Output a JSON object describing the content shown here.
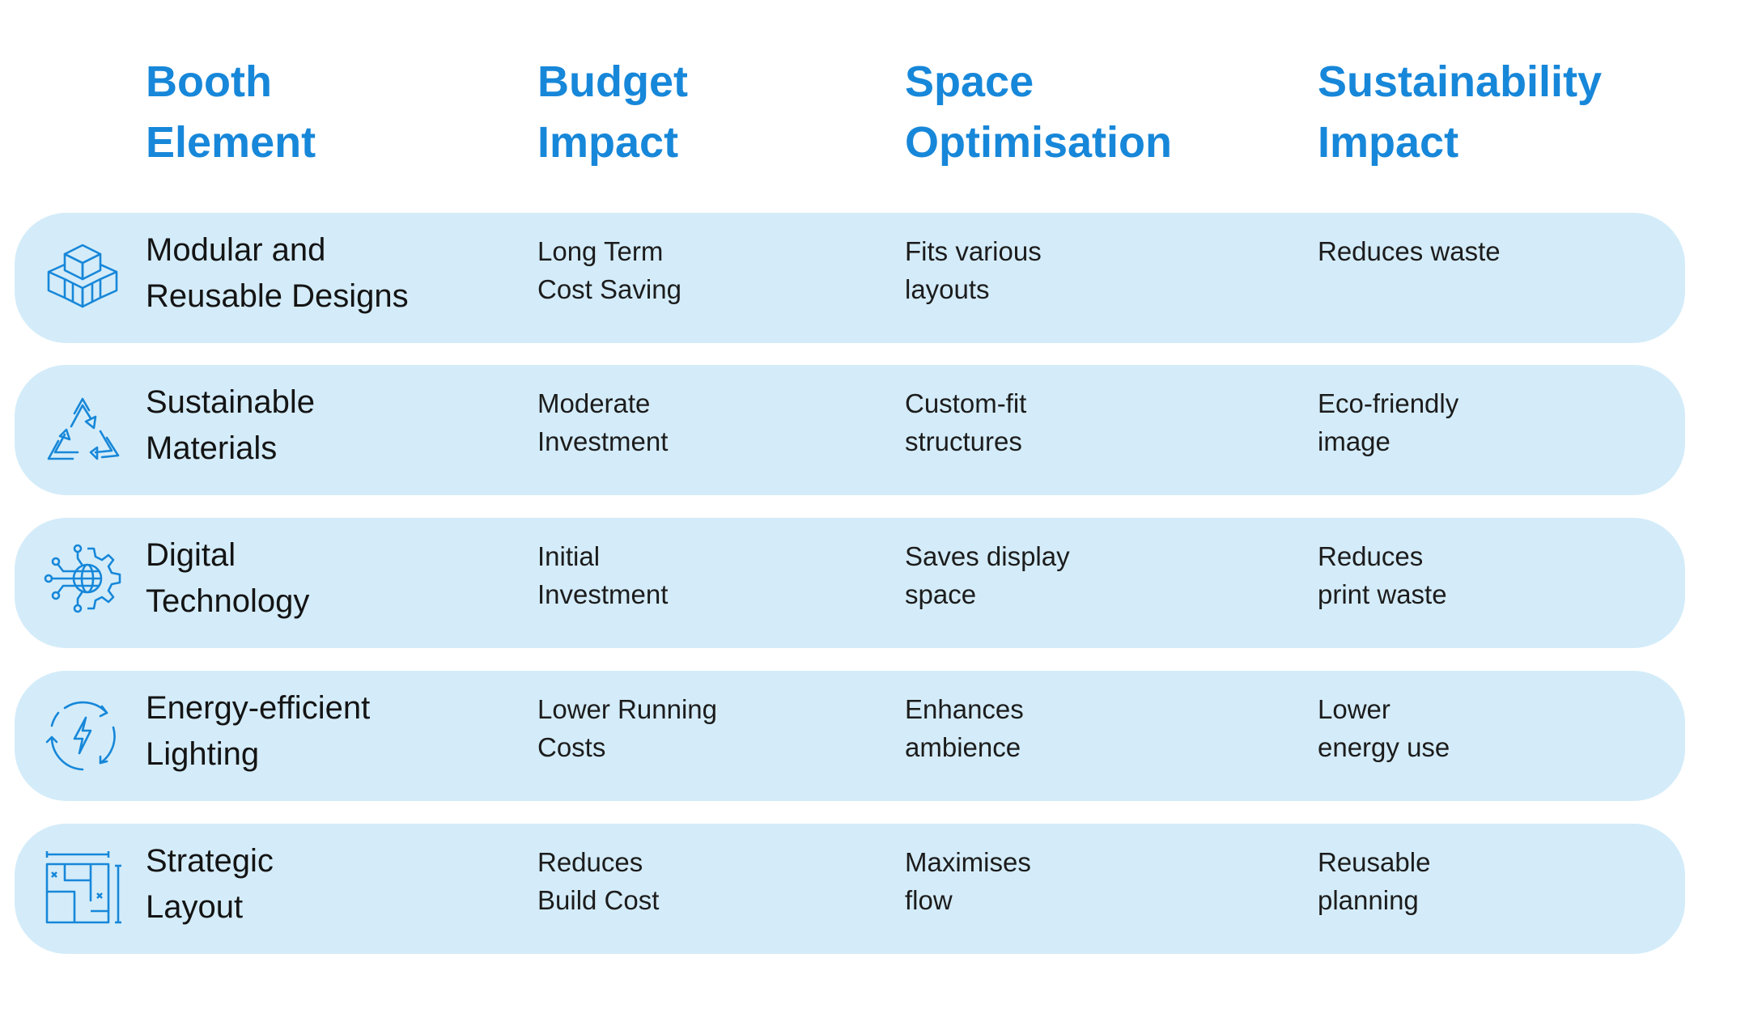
{
  "headers": [
    "Booth\nElement",
    "Budget\nImpact",
    "Space\nOptimisation",
    "Sustainability\nImpact"
  ],
  "accent_color": "#1787d9",
  "row_color": "#d4ecf9",
  "rows": [
    {
      "icon": "modular-boxes-icon",
      "element": "Modular and\nReusable Designs",
      "budget": "Long Term\nCost Saving",
      "space": "Fits various\nlayouts",
      "sustainability": "Reduces waste"
    },
    {
      "icon": "recycle-icon",
      "element": "Sustainable\nMaterials",
      "budget": "Moderate\nInvestment",
      "space": "Custom-fit\nstructures",
      "sustainability": "Eco-friendly\nimage"
    },
    {
      "icon": "digital-gear-globe-icon",
      "element": "Digital\nTechnology",
      "budget": "Initial\nInvestment",
      "space": "Saves display\nspace",
      "sustainability": "Reduces\nprint waste"
    },
    {
      "icon": "energy-bolt-icon",
      "element": "Energy-efficient\nLighting",
      "budget": "Lower Running\nCosts",
      "space": "Enhances\nambience",
      "sustainability": "Lower\nenergy use"
    },
    {
      "icon": "floor-plan-icon",
      "element": "Strategic\nLayout",
      "budget": "Reduces\nBuild Cost",
      "space": "Maximises\nflow",
      "sustainability": "Reusable\nplanning"
    }
  ]
}
